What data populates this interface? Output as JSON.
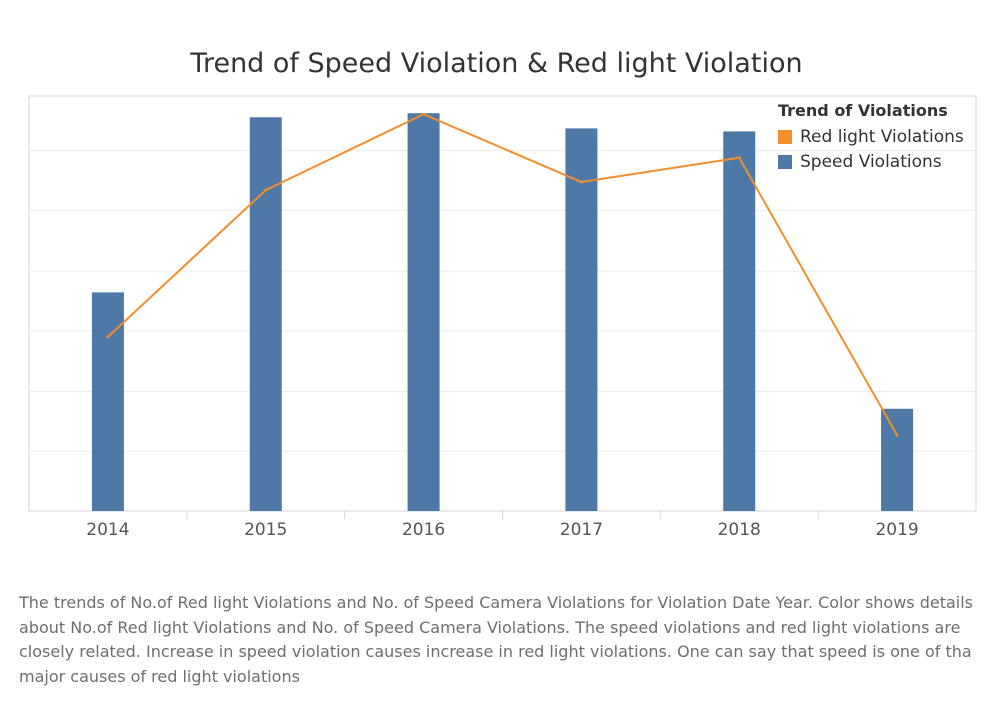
{
  "chart_data": {
    "type": "bar",
    "title": "Trend of Speed Violation & Red light Violation",
    "categories": [
      "2014",
      "2015",
      "2016",
      "2017",
      "2018",
      "2019"
    ],
    "series": [
      {
        "name": "Speed Violations",
        "type": "bar",
        "color": "#4e79a7",
        "values": [
          216,
          389,
          393,
          378,
          375,
          101
        ]
      },
      {
        "name": "Red light Violations",
        "type": "line",
        "color": "#f28e2b",
        "values": [
          172,
          317,
          392,
          325,
          349,
          75
        ]
      }
    ],
    "ylim": [
      0,
      410
    ],
    "yticks": [
      0,
      59,
      118,
      178,
      237,
      297,
      356
    ],
    "y_axis_labels_shown": false,
    "grid": true,
    "legend": {
      "title": "Trend of Violations",
      "position": "top-right",
      "entries": [
        "Red light Violations",
        "Speed Violations"
      ]
    }
  },
  "caption": "The trends of No.of Red light Violations and No. of Speed Camera Violations for Violation Date Year.  Color shows details about No.of Red light Violations and No. of Speed Camera Violations. The speed violations and red light violations are closely related. Increase in speed violation causes increase in red light violations. One can say that speed is one of tha major causes of red light violations"
}
